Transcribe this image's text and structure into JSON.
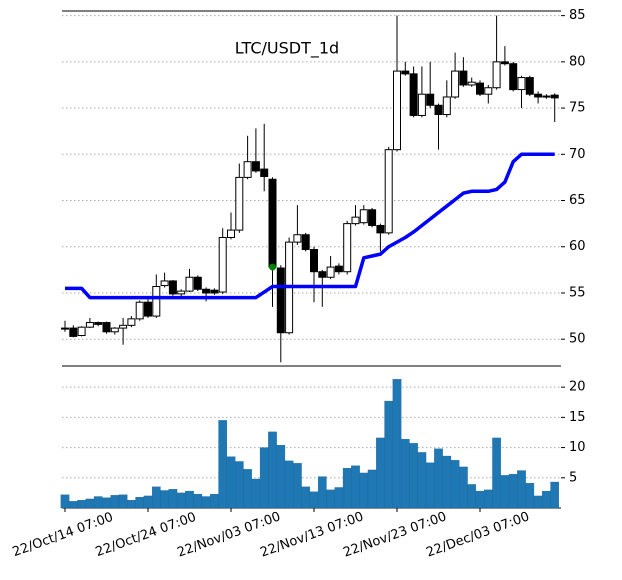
{
  "chart_data": [
    {
      "type": "candlestick",
      "title": "LTC/USDT_1d",
      "open": [
        51.1,
        51.2,
        50.4,
        51.3,
        51.8,
        51.8,
        50.8,
        51.2,
        51.5,
        52.2,
        54,
        52.5,
        55.8,
        56.3,
        54.9,
        55.2,
        56.7,
        55.4,
        55.3,
        55.1,
        61,
        61.8,
        67.5,
        69.2,
        68.4,
        67.3,
        57.7,
        50.7,
        60.5,
        61.3,
        59.7,
        57.3,
        56.7,
        57.9,
        57.3,
        62.5,
        62.6,
        64,
        62.3,
        61.5,
        70.5,
        79,
        78.7,
        74.2,
        76.5,
        75.3,
        74.3,
        76.2,
        79,
        77.5,
        77.7,
        76.5,
        77.2,
        80,
        79.8,
        77,
        78.3,
        76.5,
        76.3,
        76.4
      ],
      "high": [
        52,
        51.5,
        51.4,
        52.3,
        51.9,
        51.9,
        51.3,
        52.3,
        52.5,
        54.2,
        54.3,
        57,
        57.2,
        56.4,
        55.4,
        57.6,
        56.9,
        55.6,
        55.5,
        62,
        63.7,
        69,
        72,
        72.8,
        73.3,
        67.5,
        58,
        61,
        64.5,
        61.5,
        60,
        57.5,
        59,
        58.2,
        62.8,
        64.5,
        64.5,
        64.2,
        62.5,
        70.8,
        85,
        80,
        79.5,
        79.5,
        80,
        75.5,
        78,
        81,
        80.5,
        78.3,
        78,
        77.5,
        85,
        81.7,
        80,
        78.5,
        78.5,
        76.8,
        76.5,
        76.6
      ],
      "low": [
        50.8,
        50.2,
        50.3,
        51.2,
        51.4,
        50.6,
        50.5,
        49.4,
        51.3,
        52,
        52.3,
        52.3,
        55.6,
        54.7,
        54.6,
        55.1,
        55.2,
        54.1,
        54.8,
        54.9,
        60.8,
        61.5,
        67.3,
        68,
        66,
        53.5,
        47.5,
        50.5,
        60.2,
        59.5,
        54,
        53.5,
        56.5,
        57,
        57,
        62.3,
        62.4,
        62.1,
        59.5,
        61.3,
        70.3,
        78.5,
        74,
        74,
        75,
        70.5,
        74,
        76,
        77.3,
        77.3,
        76.3,
        75.5,
        77,
        79.6,
        76.8,
        75,
        76.3,
        75.5,
        76,
        73.5
      ],
      "close": [
        51.2,
        50.3,
        51.3,
        51.8,
        51.6,
        50.8,
        51.2,
        51.5,
        52.2,
        54,
        52.5,
        55.7,
        56.3,
        54.9,
        55.2,
        56.7,
        55.4,
        55.0,
        55.0,
        61,
        61.8,
        67.5,
        69.2,
        68.2,
        67.6,
        57.8,
        50.7,
        60.5,
        61.3,
        59.7,
        57.3,
        56.7,
        57.8,
        57.3,
        62.5,
        63.2,
        64,
        62.3,
        61.5,
        70.5,
        79,
        78.7,
        74.2,
        76.5,
        75.3,
        74.3,
        76.2,
        79,
        77.5,
        77.8,
        76.5,
        77.2,
        80,
        79.8,
        77,
        78.3,
        76.5,
        76.2,
        76.2,
        76.1
      ],
      "up_color": "#ffffff",
      "down_color": "#000000",
      "lines": [
        {
          "color": "#0000ff",
          "values": [
            55.5,
            55.5,
            55.5,
            54.5,
            54.5,
            54.5,
            54.5,
            54.5,
            54.5,
            54.5,
            54.5,
            54.5,
            54.5,
            54.5,
            54.5,
            54.5,
            54.5,
            54.5,
            54.5,
            54.5,
            54.5,
            54.5,
            54.5,
            54.5,
            55.1,
            55.7,
            55.7,
            55.7,
            55.7,
            55.7,
            55.7,
            55.7,
            55.7,
            55.7,
            55.7,
            55.7,
            58.8,
            59,
            59.2,
            60,
            60.5,
            61,
            61.6,
            62.3,
            63,
            63.7,
            64.4,
            65.1,
            65.8,
            66,
            66,
            66,
            66.2,
            67,
            69.2,
            70,
            70,
            70,
            70,
            70
          ]
        }
      ],
      "markers": [
        {
          "color": "#008000",
          "values": [
            null,
            null,
            null,
            null,
            null,
            null,
            null,
            null,
            null,
            null,
            null,
            null,
            null,
            null,
            null,
            null,
            null,
            null,
            null,
            null,
            null,
            null,
            null,
            null,
            null,
            57.8,
            null,
            null,
            null,
            null,
            null,
            null,
            null,
            null,
            null,
            null,
            null,
            null,
            null,
            null,
            null,
            null,
            null,
            null,
            null,
            null,
            null,
            null,
            null,
            null,
            null,
            null,
            null,
            null,
            null,
            null,
            null,
            null,
            null,
            null
          ]
        }
      ],
      "ylim": [
        47.1,
        85.5
      ],
      "yticks": [
        50,
        55,
        60,
        65,
        70,
        75,
        80,
        85
      ],
      "grid": true
    },
    {
      "type": "bar",
      "categories": [
        "22/Oct/14 07:00",
        null,
        null,
        null,
        null,
        null,
        null,
        null,
        null,
        null,
        "22/Oct/24 07:00",
        null,
        null,
        null,
        null,
        null,
        null,
        null,
        null,
        null,
        "22/Nov/03 07:00",
        null,
        null,
        null,
        null,
        null,
        null,
        null,
        null,
        null,
        "22/Nov/13 07:00",
        null,
        null,
        null,
        null,
        null,
        null,
        null,
        null,
        null,
        "22/Nov/23 07:00",
        null,
        null,
        null,
        null,
        null,
        null,
        null,
        null,
        null,
        "22/Dec/03 07:00",
        null,
        null,
        null,
        null,
        null,
        null,
        null,
        null,
        null
      ],
      "values": [
        2.2,
        1.1,
        1.3,
        1.5,
        1.9,
        1.7,
        2.1,
        2.2,
        1.3,
        1.8,
        2.0,
        3.5,
        2.9,
        3.1,
        2.5,
        2.8,
        2.3,
        1.9,
        2.3,
        14.5,
        8.5,
        7.7,
        6.4,
        4.8,
        10,
        12.6,
        10.4,
        7.8,
        7.4,
        3.5,
        2.7,
        5.2,
        3.0,
        3.4,
        6.6,
        7.0,
        5.8,
        6.3,
        11.6,
        17.7,
        21.3,
        11.4,
        10.7,
        9.2,
        7.5,
        9.8,
        8.6,
        7.9,
        6.8,
        3.9,
        2.8,
        3.0,
        11.6,
        5.4,
        5.6,
        6.2,
        4.1,
        2.0,
        2.8,
        4.3
      ],
      "color": "#1f77b4",
      "ylim": [
        0,
        23.5
      ],
      "yticks": [
        5,
        10,
        15,
        20
      ],
      "grid": true
    }
  ]
}
